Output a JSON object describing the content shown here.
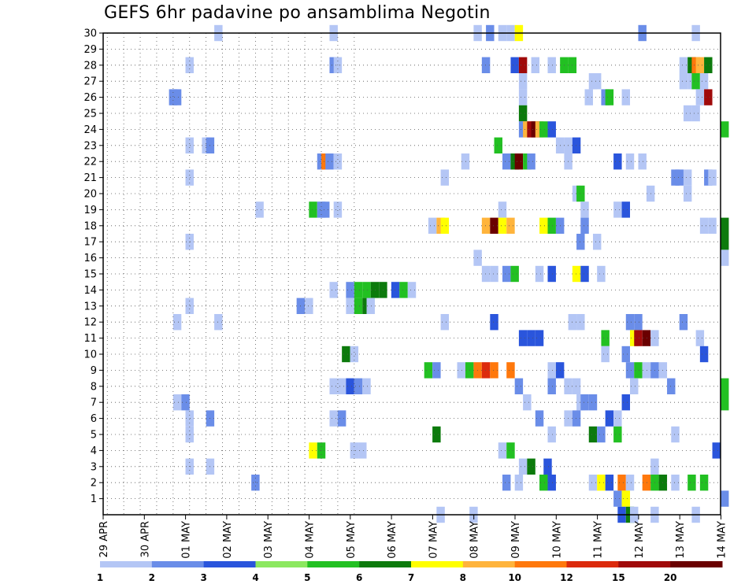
{
  "chart_data": {
    "type": "heatmap",
    "title": "GEFS 6hr padavine po ansamblima Negotin",
    "xlabel": "",
    "ylabel": "",
    "y_ticks": [
      "1",
      "2",
      "3",
      "4",
      "5",
      "6",
      "7",
      "8",
      "9",
      "10",
      "11",
      "12",
      "13",
      "14",
      "15",
      "16",
      "17",
      "18",
      "19",
      "20",
      "21",
      "22",
      "23",
      "24",
      "25",
      "26",
      "27",
      "28",
      "29",
      "30"
    ],
    "ylim": [
      0,
      30
    ],
    "x_ticks": [
      "29 APR",
      "30 APR",
      "01 MAY",
      "02 MAY",
      "03 MAY",
      "04 MAY",
      "05 MAY",
      "06 MAY",
      "07 MAY",
      "08 MAY",
      "09 MAY",
      "10 MAY",
      "11 MAY",
      "12 MAY",
      "13 MAY",
      "14 MAY"
    ],
    "time_step": "6hr",
    "grid": "dotted",
    "legend": {
      "placement": "bottom",
      "labels": [
        "1",
        "2",
        "3",
        "4",
        "5",
        "6",
        "7",
        "8",
        "10",
        "12",
        "15",
        "20"
      ],
      "colors": [
        "#b4c6f5",
        "#6a8de8",
        "#2a55dc",
        "#8ce860",
        "#22c022",
        "#0c7a0c",
        "#ffff00",
        "#ffb43c",
        "#ff780c",
        "#dc2a0c",
        "#a00a0a",
        "#6a0000"
      ]
    },
    "color_classes_mm": [
      1,
      2,
      3,
      4,
      5,
      6,
      7,
      8,
      10,
      12,
      15,
      20
    ],
    "note_unit_levels": "cell value = threshold level of its colour class",
    "cells": [
      [
        30,
        27,
        1
      ],
      [
        30,
        55,
        1
      ],
      [
        30,
        90,
        1
      ],
      [
        30,
        93,
        2
      ],
      [
        30,
        96,
        1
      ],
      [
        30,
        98,
        1
      ],
      [
        30,
        100,
        7
      ],
      [
        30,
        130,
        2
      ],
      [
        30,
        143,
        1
      ],
      [
        28,
        20,
        1
      ],
      [
        28,
        55,
        2
      ],
      [
        28,
        56,
        1
      ],
      [
        28,
        92,
        2
      ],
      [
        28,
        99,
        3
      ],
      [
        28,
        101,
        15
      ],
      [
        28,
        104,
        1
      ],
      [
        28,
        108,
        1
      ],
      [
        28,
        111,
        5
      ],
      [
        28,
        113,
        5
      ],
      [
        28,
        140,
        1
      ],
      [
        28,
        142,
        6
      ],
      [
        28,
        143,
        10
      ],
      [
        28,
        144,
        8
      ],
      [
        28,
        146,
        6
      ],
      [
        27,
        101,
        1
      ],
      [
        27,
        118,
        1
      ],
      [
        27,
        119,
        1
      ],
      [
        27,
        140,
        1
      ],
      [
        27,
        142,
        1
      ],
      [
        27,
        143,
        5
      ],
      [
        27,
        145,
        1
      ],
      [
        26,
        16,
        2
      ],
      [
        26,
        17,
        2
      ],
      [
        26,
        101,
        1
      ],
      [
        26,
        117,
        1
      ],
      [
        26,
        121,
        2
      ],
      [
        26,
        122,
        5
      ],
      [
        26,
        126,
        1
      ],
      [
        26,
        144,
        1
      ],
      [
        26,
        146,
        15
      ],
      [
        25,
        101,
        6
      ],
      [
        25,
        141,
        1
      ],
      [
        25,
        143,
        1
      ],
      [
        24,
        101,
        2
      ],
      [
        24,
        102,
        8
      ],
      [
        24,
        103,
        15
      ],
      [
        24,
        104,
        20
      ],
      [
        24,
        105,
        8
      ],
      [
        24,
        106,
        5
      ],
      [
        24,
        108,
        3
      ],
      [
        24,
        150,
        5
      ],
      [
        23,
        20,
        1
      ],
      [
        23,
        24,
        1
      ],
      [
        23,
        25,
        2
      ],
      [
        23,
        95,
        5
      ],
      [
        23,
        110,
        1
      ],
      [
        23,
        112,
        1
      ],
      [
        23,
        114,
        3
      ],
      [
        22,
        52,
        2
      ],
      [
        22,
        53,
        10
      ],
      [
        22,
        54,
        2
      ],
      [
        22,
        56,
        1
      ],
      [
        22,
        87,
        1
      ],
      [
        22,
        97,
        2
      ],
      [
        22,
        99,
        6
      ],
      [
        22,
        100,
        20
      ],
      [
        22,
        102,
        5
      ],
      [
        22,
        103,
        2
      ],
      [
        22,
        112,
        1
      ],
      [
        22,
        124,
        3
      ],
      [
        22,
        127,
        1
      ],
      [
        22,
        130,
        1
      ],
      [
        21,
        20,
        1
      ],
      [
        21,
        82,
        1
      ],
      [
        21,
        138,
        2
      ],
      [
        21,
        139,
        2
      ],
      [
        21,
        141,
        1
      ],
      [
        21,
        146,
        2
      ],
      [
        21,
        147,
        1
      ],
      [
        20,
        114,
        1
      ],
      [
        20,
        115,
        5
      ],
      [
        20,
        132,
        1
      ],
      [
        20,
        141,
        1
      ],
      [
        19,
        37,
        1
      ],
      [
        19,
        50,
        5
      ],
      [
        19,
        52,
        2
      ],
      [
        19,
        53,
        2
      ],
      [
        19,
        56,
        1
      ],
      [
        19,
        96,
        1
      ],
      [
        19,
        116,
        1
      ],
      [
        19,
        124,
        1
      ],
      [
        19,
        126,
        3
      ],
      [
        18,
        79,
        1
      ],
      [
        18,
        81,
        8
      ],
      [
        18,
        82,
        7
      ],
      [
        18,
        92,
        8
      ],
      [
        18,
        94,
        20
      ],
      [
        18,
        96,
        7
      ],
      [
        18,
        98,
        8
      ],
      [
        18,
        106,
        7
      ],
      [
        18,
        108,
        5
      ],
      [
        18,
        110,
        2
      ],
      [
        18,
        116,
        2
      ],
      [
        18,
        145,
        1
      ],
      [
        18,
        147,
        1
      ],
      [
        18,
        150,
        6
      ],
      [
        17,
        20,
        1
      ],
      [
        17,
        115,
        2
      ],
      [
        17,
        119,
        1
      ],
      [
        17,
        150,
        6
      ],
      [
        16,
        90,
        1
      ],
      [
        16,
        150,
        1
      ],
      [
        15,
        92,
        1
      ],
      [
        15,
        94,
        1
      ],
      [
        15,
        97,
        2
      ],
      [
        15,
        99,
        5
      ],
      [
        15,
        105,
        1
      ],
      [
        15,
        108,
        3
      ],
      [
        15,
        114,
        7
      ],
      [
        15,
        116,
        3
      ],
      [
        15,
        120,
        1
      ],
      [
        14,
        55,
        1
      ],
      [
        14,
        59,
        2
      ],
      [
        14,
        61,
        5
      ],
      [
        14,
        63,
        5
      ],
      [
        14,
        65,
        6
      ],
      [
        14,
        67,
        6
      ],
      [
        14,
        70,
        3
      ],
      [
        14,
        72,
        5
      ],
      [
        14,
        74,
        1
      ],
      [
        13,
        20,
        1
      ],
      [
        13,
        47,
        2
      ],
      [
        13,
        49,
        1
      ],
      [
        13,
        59,
        1
      ],
      [
        13,
        61,
        5
      ],
      [
        13,
        63,
        6
      ],
      [
        13,
        64,
        1
      ],
      [
        12,
        17,
        1
      ],
      [
        12,
        27,
        1
      ],
      [
        12,
        82,
        1
      ],
      [
        12,
        94,
        3
      ],
      [
        12,
        113,
        1
      ],
      [
        12,
        115,
        1
      ],
      [
        12,
        127,
        2
      ],
      [
        12,
        129,
        2
      ],
      [
        12,
        140,
        2
      ],
      [
        11,
        101,
        3
      ],
      [
        11,
        103,
        3
      ],
      [
        11,
        105,
        3
      ],
      [
        11,
        121,
        5
      ],
      [
        11,
        128,
        7
      ],
      [
        11,
        129,
        15
      ],
      [
        11,
        131,
        20
      ],
      [
        11,
        133,
        1
      ],
      [
        11,
        144,
        1
      ],
      [
        10,
        58,
        6
      ],
      [
        10,
        60,
        1
      ],
      [
        10,
        121,
        1
      ],
      [
        10,
        126,
        2
      ],
      [
        10,
        145,
        3
      ],
      [
        9,
        78,
        5
      ],
      [
        9,
        80,
        2
      ],
      [
        9,
        86,
        1
      ],
      [
        9,
        88,
        5
      ],
      [
        9,
        90,
        10
      ],
      [
        9,
        92,
        12
      ],
      [
        9,
        94,
        10
      ],
      [
        9,
        98,
        10
      ],
      [
        9,
        108,
        1
      ],
      [
        9,
        110,
        3
      ],
      [
        9,
        127,
        2
      ],
      [
        9,
        129,
        5
      ],
      [
        9,
        131,
        1
      ],
      [
        9,
        133,
        2
      ],
      [
        9,
        135,
        1
      ],
      [
        8,
        55,
        1
      ],
      [
        8,
        57,
        1
      ],
      [
        8,
        59,
        3
      ],
      [
        8,
        61,
        2
      ],
      [
        8,
        63,
        1
      ],
      [
        8,
        100,
        2
      ],
      [
        8,
        108,
        2
      ],
      [
        8,
        112,
        1
      ],
      [
        8,
        114,
        1
      ],
      [
        8,
        128,
        1
      ],
      [
        8,
        137,
        2
      ],
      [
        8,
        150,
        5
      ],
      [
        7,
        17,
        1
      ],
      [
        7,
        19,
        2
      ],
      [
        7,
        102,
        1
      ],
      [
        7,
        115,
        1
      ],
      [
        7,
        116,
        2
      ],
      [
        7,
        118,
        2
      ],
      [
        7,
        126,
        3
      ],
      [
        7,
        150,
        5
      ],
      [
        6,
        20,
        1
      ],
      [
        6,
        25,
        2
      ],
      [
        6,
        55,
        1
      ],
      [
        6,
        57,
        2
      ],
      [
        6,
        105,
        2
      ],
      [
        6,
        112,
        1
      ],
      [
        6,
        114,
        2
      ],
      [
        6,
        122,
        3
      ],
      [
        6,
        124,
        1
      ],
      [
        5,
        20,
        1
      ],
      [
        5,
        80,
        6
      ],
      [
        5,
        108,
        1
      ],
      [
        5,
        118,
        6
      ],
      [
        5,
        120,
        2
      ],
      [
        5,
        124,
        5
      ],
      [
        5,
        138,
        1
      ],
      [
        4,
        50,
        7
      ],
      [
        4,
        52,
        5
      ],
      [
        4,
        60,
        1
      ],
      [
        4,
        62,
        1
      ],
      [
        4,
        96,
        1
      ],
      [
        4,
        98,
        5
      ],
      [
        4,
        148,
        3
      ],
      [
        3,
        20,
        1
      ],
      [
        3,
        25,
        1
      ],
      [
        3,
        101,
        1
      ],
      [
        3,
        103,
        6
      ],
      [
        3,
        107,
        3
      ],
      [
        3,
        133,
        1
      ],
      [
        2,
        36,
        2
      ],
      [
        2,
        97,
        2
      ],
      [
        2,
        100,
        1
      ],
      [
        2,
        106,
        5
      ],
      [
        2,
        108,
        3
      ],
      [
        2,
        118,
        1
      ],
      [
        2,
        120,
        7
      ],
      [
        2,
        122,
        3
      ],
      [
        2,
        125,
        10
      ],
      [
        2,
        127,
        1
      ],
      [
        2,
        131,
        10
      ],
      [
        2,
        133,
        5
      ],
      [
        2,
        135,
        6
      ],
      [
        2,
        138,
        1
      ],
      [
        2,
        142,
        5
      ],
      [
        2,
        145,
        5
      ],
      [
        1,
        124,
        2
      ],
      [
        1,
        126,
        7
      ],
      [
        1,
        150,
        2
      ],
      [
        0,
        81,
        1
      ],
      [
        0,
        89,
        1
      ],
      [
        0,
        125,
        3
      ],
      [
        0,
        127,
        6
      ],
      [
        0,
        128,
        1
      ],
      [
        0,
        133,
        1
      ],
      [
        0,
        143,
        1
      ]
    ]
  }
}
